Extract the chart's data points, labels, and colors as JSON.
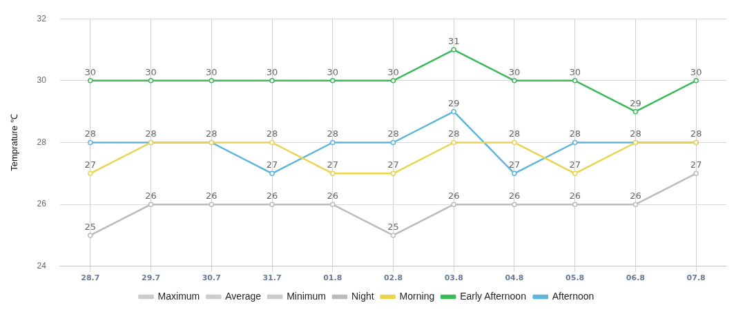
{
  "chart_data": {
    "type": "line",
    "ylabel": "Temprature ℃",
    "categories": [
      "28.7",
      "29.7",
      "30.7",
      "31.7",
      "01.8",
      "02.8",
      "03.8",
      "04.8",
      "05.8",
      "06.8",
      "07.8"
    ],
    "series": [
      {
        "name": "Maximum",
        "color": "#cccccc",
        "values": [
          null,
          null,
          null,
          null,
          null,
          null,
          null,
          null,
          null,
          null,
          null
        ]
      },
      {
        "name": "Average",
        "color": "#cccccc",
        "values": [
          null,
          null,
          null,
          null,
          null,
          null,
          null,
          null,
          null,
          null,
          null
        ]
      },
      {
        "name": "Minimum",
        "color": "#cccccc",
        "values": [
          null,
          null,
          null,
          null,
          null,
          null,
          null,
          null,
          null,
          null,
          null
        ]
      },
      {
        "name": "Night",
        "color": "#bbbbbb",
        "values": [
          25,
          26,
          26,
          26,
          26,
          25,
          26,
          26,
          26,
          26,
          27
        ]
      },
      {
        "name": "Morning",
        "color": "#e8d44d",
        "values": [
          27,
          28,
          28,
          28,
          27,
          27,
          28,
          28,
          27,
          28,
          28
        ],
        "value_labels": [
          "27",
          null,
          null,
          "28",
          "27",
          "27",
          "28",
          "28",
          "27",
          null,
          null
        ]
      },
      {
        "name": "Early Afternoon",
        "color": "#3cb95a",
        "values": [
          30,
          30,
          30,
          30,
          30,
          30,
          31,
          30,
          30,
          29,
          30
        ]
      },
      {
        "name": "Afternoon",
        "color": "#5fb4dc",
        "values": [
          28,
          28,
          28,
          27,
          28,
          28,
          29,
          27,
          28,
          28,
          28
        ]
      }
    ],
    "ylim": [
      24,
      32
    ],
    "yticks": [
      24,
      26,
      28,
      30,
      32
    ],
    "grid": true,
    "legend": "bottom",
    "marker": "circle",
    "line_style": "solid",
    "data_labels": true
  }
}
